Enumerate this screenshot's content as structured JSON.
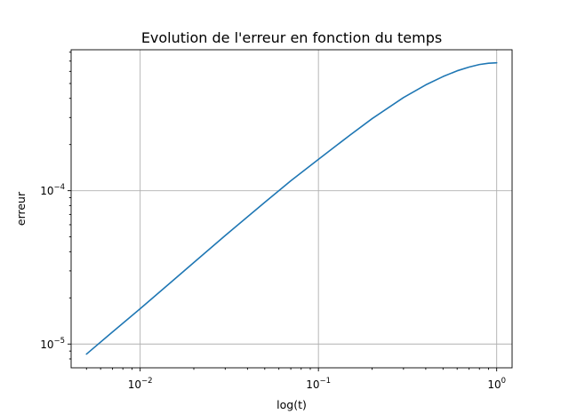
{
  "chart_data": {
    "type": "line",
    "title": "Evolution de l'erreur en fonction du temps",
    "xlabel": "log(t)",
    "ylabel": "erreur",
    "xscale": "log",
    "yscale": "log",
    "xlim": [
      0.0041,
      1.22
    ],
    "ylim": [
      7e-06,
      0.00083
    ],
    "grid": true,
    "x_ticks": [
      {
        "base": "10",
        "exp": "−2"
      },
      {
        "base": "10",
        "exp": "−1"
      },
      {
        "base": "10",
        "exp": "0"
      }
    ],
    "y_ticks": [
      {
        "base": "10",
        "exp": "−5"
      },
      {
        "base": "10",
        "exp": "−4"
      }
    ],
    "series": [
      {
        "color": "#1f77b4",
        "x": [
          0.005,
          0.007,
          0.01,
          0.015,
          0.02,
          0.03,
          0.05,
          0.07,
          0.1,
          0.15,
          0.2,
          0.3,
          0.4,
          0.5,
          0.6,
          0.7,
          0.8,
          0.9,
          1.0
        ],
        "y": [
          8.6e-06,
          1.2e-05,
          1.7e-05,
          2.55e-05,
          3.4e-05,
          5.1e-05,
          8.4e-05,
          0.000116,
          0.00016,
          0.00023,
          0.000295,
          0.000405,
          0.00049,
          0.000555,
          0.000605,
          0.00064,
          0.000665,
          0.000678,
          0.000682
        ]
      }
    ]
  }
}
